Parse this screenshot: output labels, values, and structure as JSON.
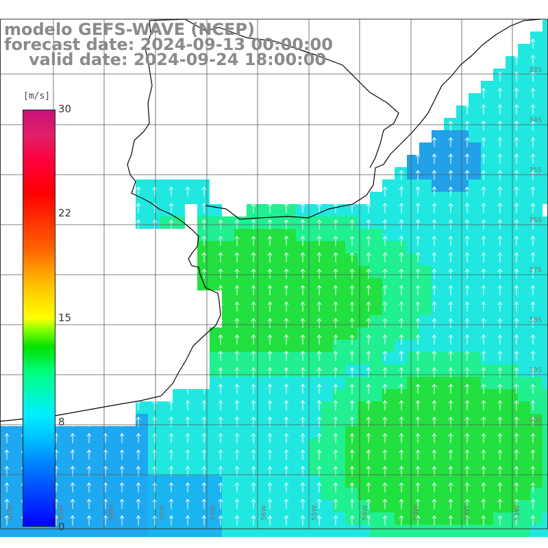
{
  "title": {
    "line1": "modelo GEFS-WAVE (NCEP)",
    "line2": "forecast date: 2024-09-13 00:00:00",
    "line3": "valid date: 2024-09-24 18:00:00"
  },
  "colorbar": {
    "unit": "[m/s]",
    "ticks": [
      "30",
      "22",
      "15",
      "8",
      "0"
    ],
    "range": [
      0,
      30
    ]
  },
  "map": {
    "lat_labels": [
      "33S",
      "34S",
      "35S",
      "36S",
      "37S",
      "38S",
      "39S",
      "40S"
    ],
    "lon_labels": [
      "61W",
      "60W",
      "59W",
      "58W",
      "57W",
      "56W",
      "55W",
      "54W",
      "53W",
      "52W",
      "51W"
    ],
    "field": "wind speed",
    "vector_direction": "south to north"
  }
}
